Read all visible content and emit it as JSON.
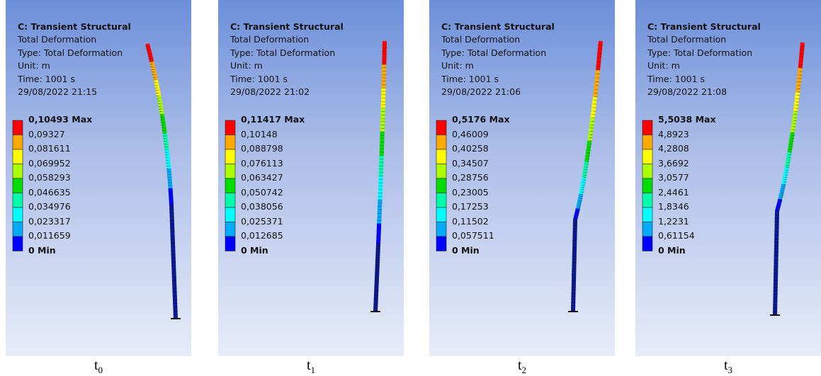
{
  "panels": [
    {
      "title": "C: Transient Structural",
      "lines": [
        "Total Deformation",
        "Type: Total Deformation",
        "Unit: m",
        "Time: 1001 s",
        "29/08/2022 21:15"
      ],
      "legend": [
        "0,10493 Max",
        "0,09327",
        "0,081611",
        "0,069952",
        "0,058293",
        "0,046635",
        "0,034976",
        "0,023317",
        "0,011659",
        "0 Min"
      ],
      "caption": "t",
      "caption_sub": "0"
    },
    {
      "title": "C: Transient Structural",
      "lines": [
        "Total Deformation",
        "Type: Total Deformation",
        "Unit: m",
        "Time: 1001 s",
        "29/08/2022 21:02"
      ],
      "legend": [
        "0,11417 Max",
        "0,10148",
        "0,088798",
        "0,076113",
        "0,063427",
        "0,050742",
        "0,038056",
        "0,025371",
        "0,012685",
        "0 Min"
      ],
      "caption": "t",
      "caption_sub": "1"
    },
    {
      "title": "C: Transient Structural",
      "lines": [
        "Total Deformation",
        "Type: Total Deformation",
        "Unit: m",
        "Time: 1001 s",
        "29/08/2022 21:06"
      ],
      "legend": [
        "0,5176 Max",
        "0,46009",
        "0,40258",
        "0,34507",
        "0,28756",
        "0,23005",
        "0,17253",
        "0,11502",
        "0,057511",
        "0 Min"
      ],
      "caption": "t",
      "caption_sub": "2"
    },
    {
      "title": "C: Transient Structural",
      "lines": [
        "Total Deformation",
        "Type: Total Deformation",
        "Unit: m",
        "Time: 1001 s",
        "29/08/2022 21:08"
      ],
      "legend": [
        "5,5038 Max",
        "4,8923",
        "4,2808",
        "3,6692",
        "3,0577",
        "2,4461",
        "1,8346",
        "1,2231",
        "0,61154",
        "0 Min"
      ],
      "caption": "t",
      "caption_sub": "3"
    }
  ]
}
